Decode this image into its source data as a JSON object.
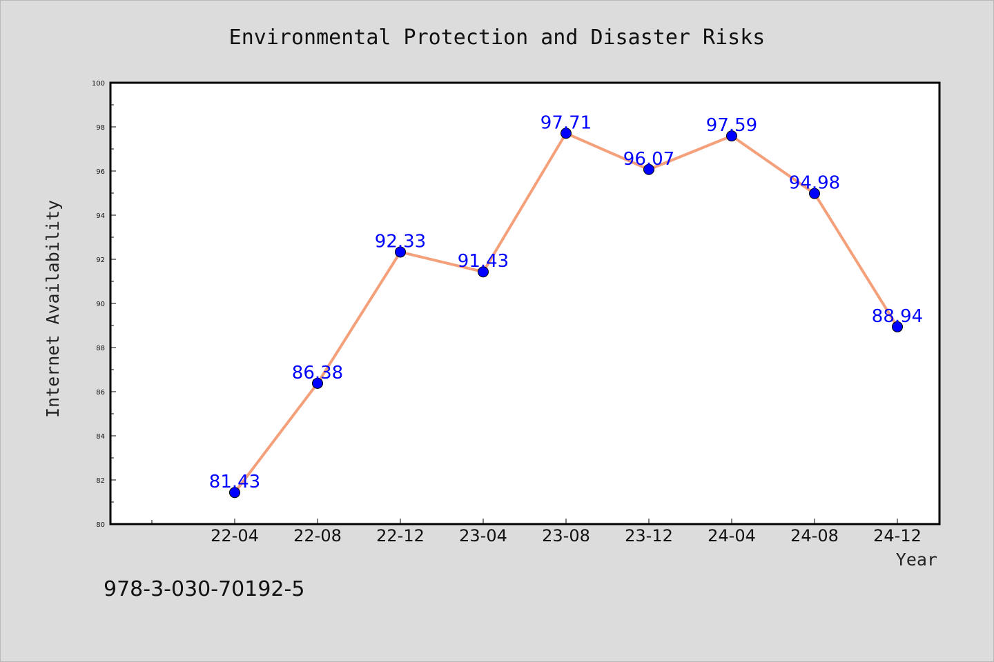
{
  "chart_data": {
    "type": "line",
    "title": "Environmental Protection and Disaster Risks",
    "xlabel": "Year",
    "ylabel": "Internet Availability",
    "categories": [
      "22-04",
      "22-08",
      "22-12",
      "23-04",
      "23-08",
      "23-12",
      "24-04",
      "24-08",
      "24-12"
    ],
    "series": [
      {
        "values": [
          81.43,
          86.38,
          92.33,
          91.43,
          97.71,
          96.07,
          97.59,
          94.98,
          88.94
        ]
      }
    ],
    "data_labels": [
      "81.43",
      "86.38",
      "92.33",
      "91.43",
      "97.71",
      "96.07",
      "97.59",
      "94.98",
      "88.94"
    ],
    "ylim": [
      80,
      100
    ],
    "yticks": [
      80,
      82,
      84,
      86,
      88,
      90,
      92,
      94,
      96,
      98,
      100
    ],
    "grid": false,
    "line_color": "#f4a07a",
    "marker_color": "#0000ff",
    "label_color": "#0000ff"
  },
  "footer": {
    "isbn": "978-3-030-70192-5"
  }
}
